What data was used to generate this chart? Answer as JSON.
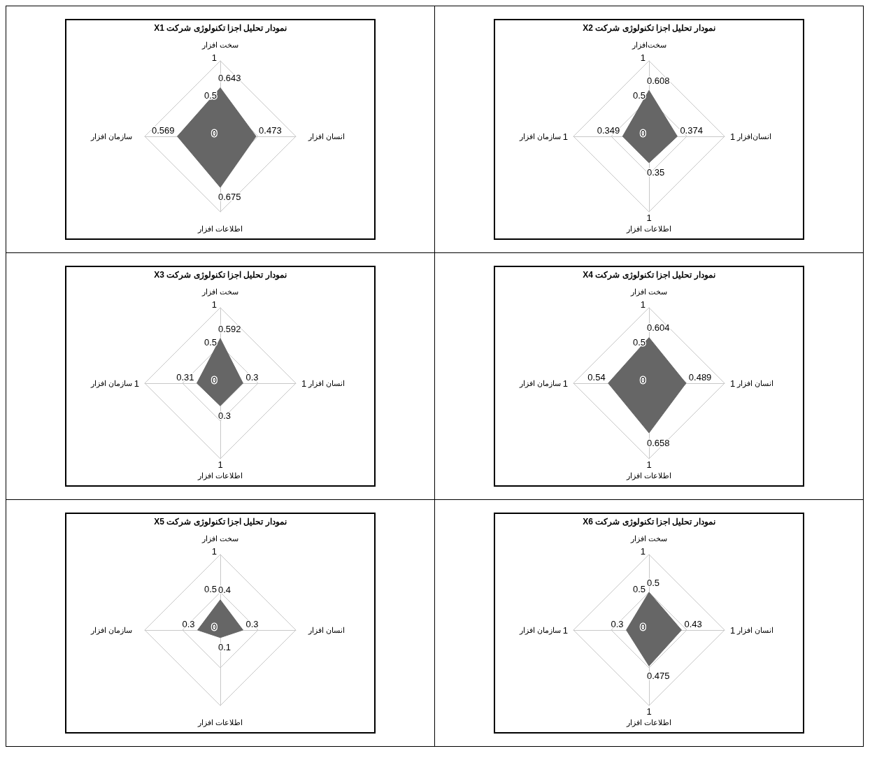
{
  "chart_data": [
    {
      "type": "radar",
      "title": "نمودار تحلیل اجزا تکنولوژی شرکت X1",
      "categories": [
        "سخت افزار",
        "انسان افزار",
        "اطلاعات افزار",
        "سازمان افزار"
      ],
      "series": [
        {
          "color": "#666666",
          "values": [
            0.643,
            0.473,
            0.675,
            0.569
          ]
        }
      ],
      "ylim": [
        0,
        1
      ],
      "yticks": [
        0,
        0.5,
        1
      ],
      "grid": true,
      "data_labels": true
    },
    {
      "type": "radar",
      "title": "نمودار تحلیل اجزا تکنولوژی شرکت X2",
      "categories": [
        "سخت‌افزار",
        "انسان‌افزار",
        "اطلاعات افزار",
        "سازمان افزار"
      ],
      "series": [
        {
          "color": "#666666",
          "values": [
            0.608,
            0.374,
            0.35,
            0.349
          ]
        }
      ],
      "ylim": [
        0,
        1
      ],
      "yticks": [
        0,
        0.5,
        1
      ],
      "grid": true,
      "data_labels": true,
      "annotations": [
        {
          "text": "1",
          "x": "انسان‌افزار"
        },
        {
          "text": "1",
          "x": "اطلاعات افزار"
        },
        {
          "text": "1",
          "x": "سازمان افزار"
        }
      ]
    },
    {
      "type": "radar",
      "title": "نمودار تحلیل اجزا تکنولوژی شرکت X3",
      "categories": [
        "سخت افزار",
        "انسان افزار",
        "اطلاعات افزار",
        "سازمان افزار"
      ],
      "series": [
        {
          "color": "#666666",
          "values": [
            0.592,
            0.3,
            0.3,
            0.31
          ]
        }
      ],
      "ylim": [
        0,
        1
      ],
      "yticks": [
        0,
        0.5,
        1
      ],
      "grid": true,
      "data_labels": true,
      "annotations": [
        {
          "text": "1",
          "x": "انسان افزار"
        },
        {
          "text": "1",
          "x": "اطلاعات افزار"
        },
        {
          "text": "1",
          "x": "سازمان افزار"
        }
      ]
    },
    {
      "type": "radar",
      "title": "نمودار تحلیل اجزا تکنولوژی شرکت X4",
      "categories": [
        "سخت افزار",
        "انسان افزار",
        "اطلاعات افزار",
        "سازمان افزار"
      ],
      "series": [
        {
          "color": "#666666",
          "values": [
            0.604,
            0.489,
            0.658,
            0.54
          ]
        }
      ],
      "ylim": [
        0,
        1
      ],
      "yticks": [
        0,
        0.5,
        1
      ],
      "grid": true,
      "data_labels": true,
      "annotations": [
        {
          "text": "1",
          "x": "انسان افزار"
        },
        {
          "text": "1",
          "x": "اطلاعات افزار"
        },
        {
          "text": "1",
          "x": "سازمان افزار"
        }
      ]
    },
    {
      "type": "radar",
      "title": "نمودار تحلیل اجزا تکنولوژی شرکت X5",
      "categories": [
        "سخت افزار",
        "انسان افزار",
        "اطلاعات افزار",
        "سازمان افزار"
      ],
      "series": [
        {
          "color": "#666666",
          "values": [
            0.4,
            0.3,
            0.1,
            0.3
          ]
        }
      ],
      "ylim": [
        0,
        1
      ],
      "yticks": [
        0,
        0.5,
        1
      ],
      "grid": true,
      "data_labels": true
    },
    {
      "type": "radar",
      "title": "نمودار تحلیل اجزا تکنولوژی شرکت X6",
      "categories": [
        "سخت افزار",
        "انسان افزار",
        "اطلاعات افزار",
        "سازمان افزار"
      ],
      "series": [
        {
          "color": "#666666",
          "values": [
            0.5,
            0.43,
            0.475,
            0.3
          ]
        }
      ],
      "ylim": [
        0,
        1
      ],
      "yticks": [
        0,
        0.5,
        1
      ],
      "grid": true,
      "data_labels": true,
      "annotations": [
        {
          "text": "1",
          "x": "انسان افزار"
        },
        {
          "text": "1",
          "x": "اطلاعات افزار"
        },
        {
          "text": "1",
          "x": "سازمان افزار"
        }
      ]
    }
  ]
}
